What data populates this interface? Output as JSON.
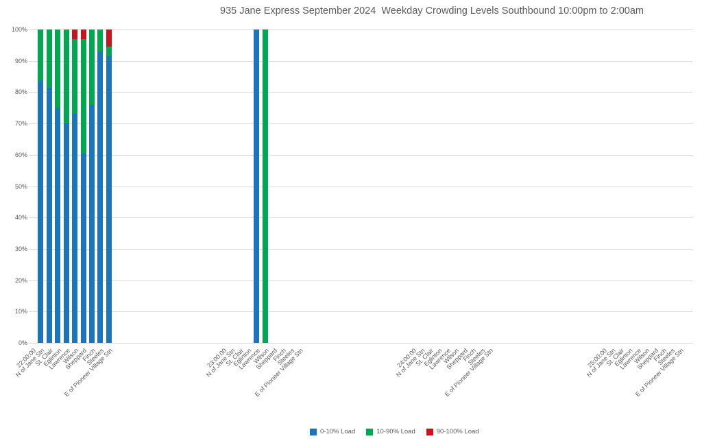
{
  "title": "935 Jane Express September 2024  Weekday Crowding Levels Southbound 10:00pm to 2:00am",
  "chart_data": {
    "type": "bar",
    "stacked": true,
    "title": "935 Jane Express September 2024  Weekday Crowding Levels Southbound 10:00pm to 2:00am",
    "xlabel": "",
    "ylabel": "",
    "ylim": [
      0,
      100
    ],
    "unit": "percent of trips",
    "grid": "horizontal",
    "legend_position": "bottom",
    "y_ticks": [
      "0%",
      "10%",
      "20%",
      "30%",
      "40%",
      "50%",
      "60%",
      "70%",
      "80%",
      "90%",
      "100%"
    ],
    "series": [
      {
        "name": "0-10% Load",
        "color": "#1b75bc"
      },
      {
        "name": "10-90% Load",
        "color": "#00a650"
      },
      {
        "name": "90-100% Load",
        "color": "#c8151d"
      }
    ],
    "groups": [
      {
        "time": "22:00:00",
        "stations": [
          {
            "label": "N of Jane Stn",
            "values": [
              83.5,
              16.5,
              0
            ]
          },
          {
            "label": "St. Clair",
            "values": [
              81.5,
              18.5,
              0
            ]
          },
          {
            "label": "Eglinton",
            "values": [
              75,
              25,
              0
            ]
          },
          {
            "label": "Lawrence",
            "values": [
              70,
              30,
              0
            ]
          },
          {
            "label": "Wilson",
            "values": [
              73,
              24,
              3
            ]
          },
          {
            "label": "Sheppard",
            "values": [
              60.5,
              36.5,
              3
            ]
          },
          {
            "label": "Finch",
            "values": [
              76,
              24,
              0
            ]
          },
          {
            "label": "Steeles",
            "values": [
              93,
              7,
              0
            ]
          },
          {
            "label": "E of Pioneer Village Stn",
            "values": [
              91.5,
              3,
              5.5
            ]
          }
        ]
      },
      {
        "time": "23:00:00",
        "stations": [
          {
            "label": "N of Jane Stn",
            "values": null
          },
          {
            "label": "St. Clair",
            "values": null
          },
          {
            "label": "Eglinton",
            "values": null
          },
          {
            "label": "Lawrence",
            "values": [
              100,
              0,
              0
            ]
          },
          {
            "label": "Wilson",
            "values": [
              0,
              100,
              0
            ]
          },
          {
            "label": "Sheppard",
            "values": null
          },
          {
            "label": "Finch",
            "values": null
          },
          {
            "label": "Steeles",
            "values": null
          },
          {
            "label": "E of Pioneer Village Stn",
            "values": null
          }
        ]
      },
      {
        "time": "24:00:00",
        "stations": [
          {
            "label": "N of Jane Stn",
            "values": null
          },
          {
            "label": "St. Clair",
            "values": null
          },
          {
            "label": "Eglinton",
            "values": null
          },
          {
            "label": "Lawrence",
            "values": null
          },
          {
            "label": "Wilson",
            "values": null
          },
          {
            "label": "Sheppard",
            "values": null
          },
          {
            "label": "Finch",
            "values": null
          },
          {
            "label": "Steeles",
            "values": null
          },
          {
            "label": "E of Pioneer Village Stn",
            "values": null
          }
        ]
      },
      {
        "time": "25:00:00",
        "stations": [
          {
            "label": "N of Jane Stn",
            "values": null
          },
          {
            "label": "St. Clair",
            "values": null
          },
          {
            "label": "Eglinton",
            "values": null
          },
          {
            "label": "Lawrence",
            "values": null
          },
          {
            "label": "Wilson",
            "values": null
          },
          {
            "label": "Sheppard",
            "values": null
          },
          {
            "label": "Finch",
            "values": null
          },
          {
            "label": "Steeles",
            "values": null
          },
          {
            "label": "E of Pioneer Village Stn",
            "values": null
          }
        ]
      }
    ]
  }
}
